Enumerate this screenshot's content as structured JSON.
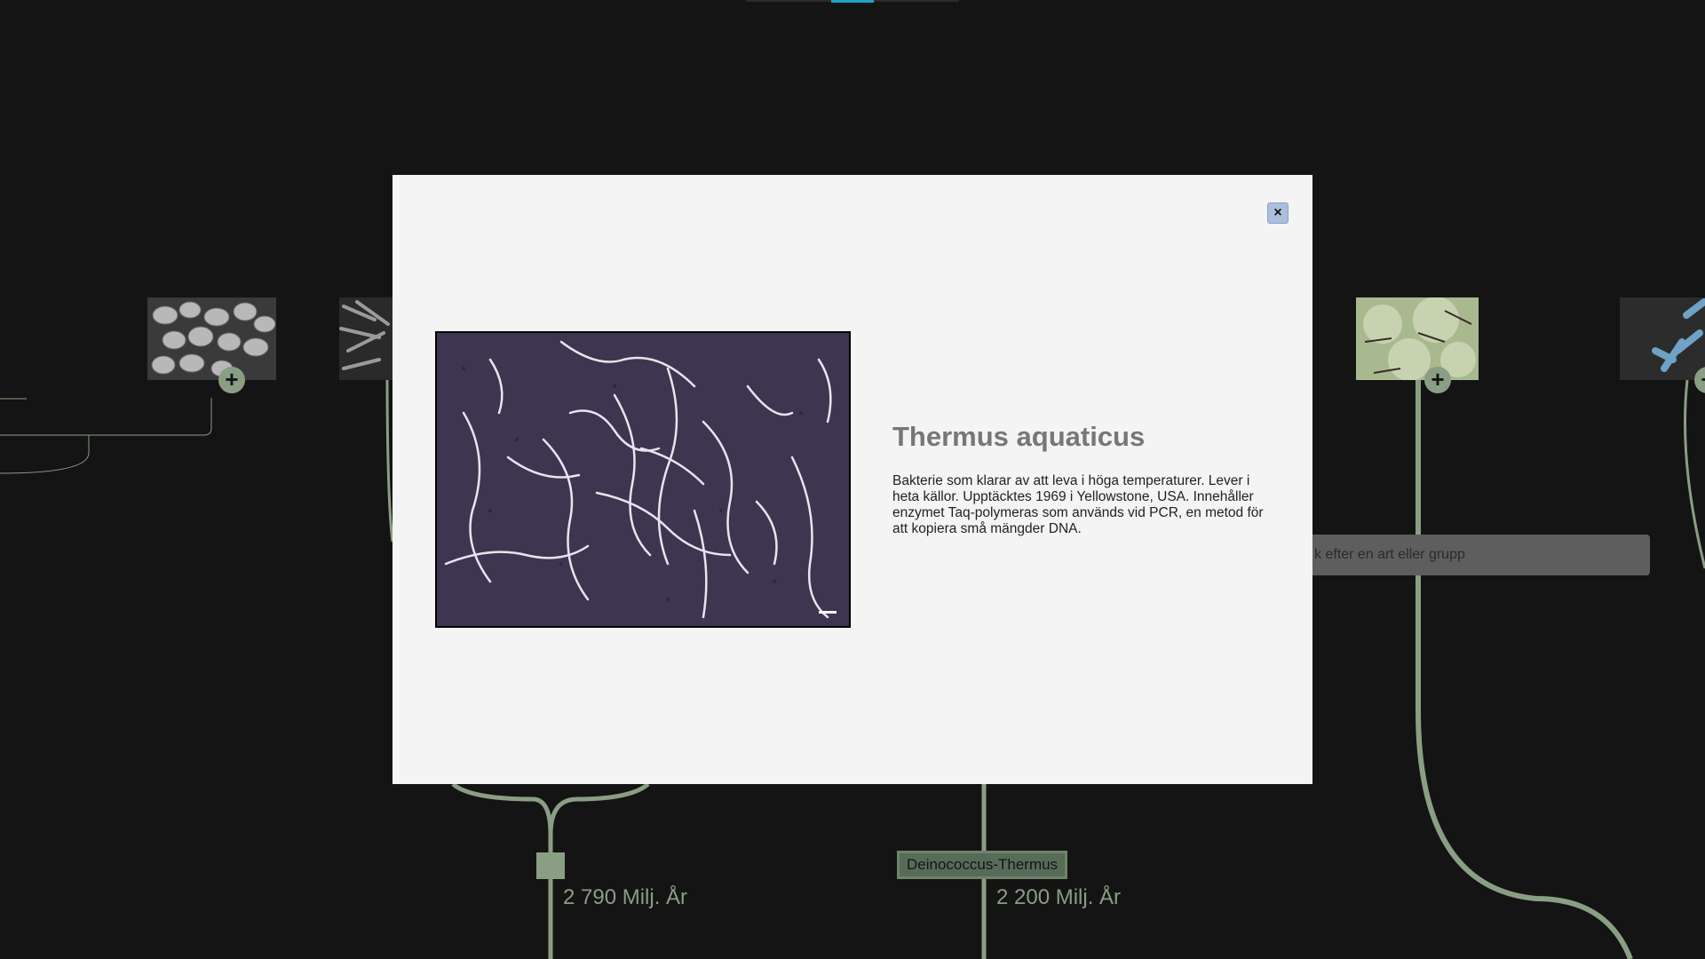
{
  "background": {
    "search": {
      "placeholder": "k efter en art eller grupp"
    },
    "time_labels": [
      "2 790 Milj. År",
      "2 200 Milj. År"
    ],
    "group_label": "Deinococcus-Thermus",
    "colors": {
      "branch": "#8a9e84",
      "background": "#141414",
      "accent": "#1fa3c4"
    }
  },
  "modal": {
    "close_label": "×",
    "title": "Thermus aquaticus",
    "description": "Bakterie som klarar av att leva i höga temperaturer. Lever i heta källor. Upptäcktes 1969 i Yellowstone, USA. Innehåller enzymet Taq-polymeras som används vid PCR, en metod för att kopiera små mängder DNA.",
    "image_icon": "micrograph-image"
  }
}
